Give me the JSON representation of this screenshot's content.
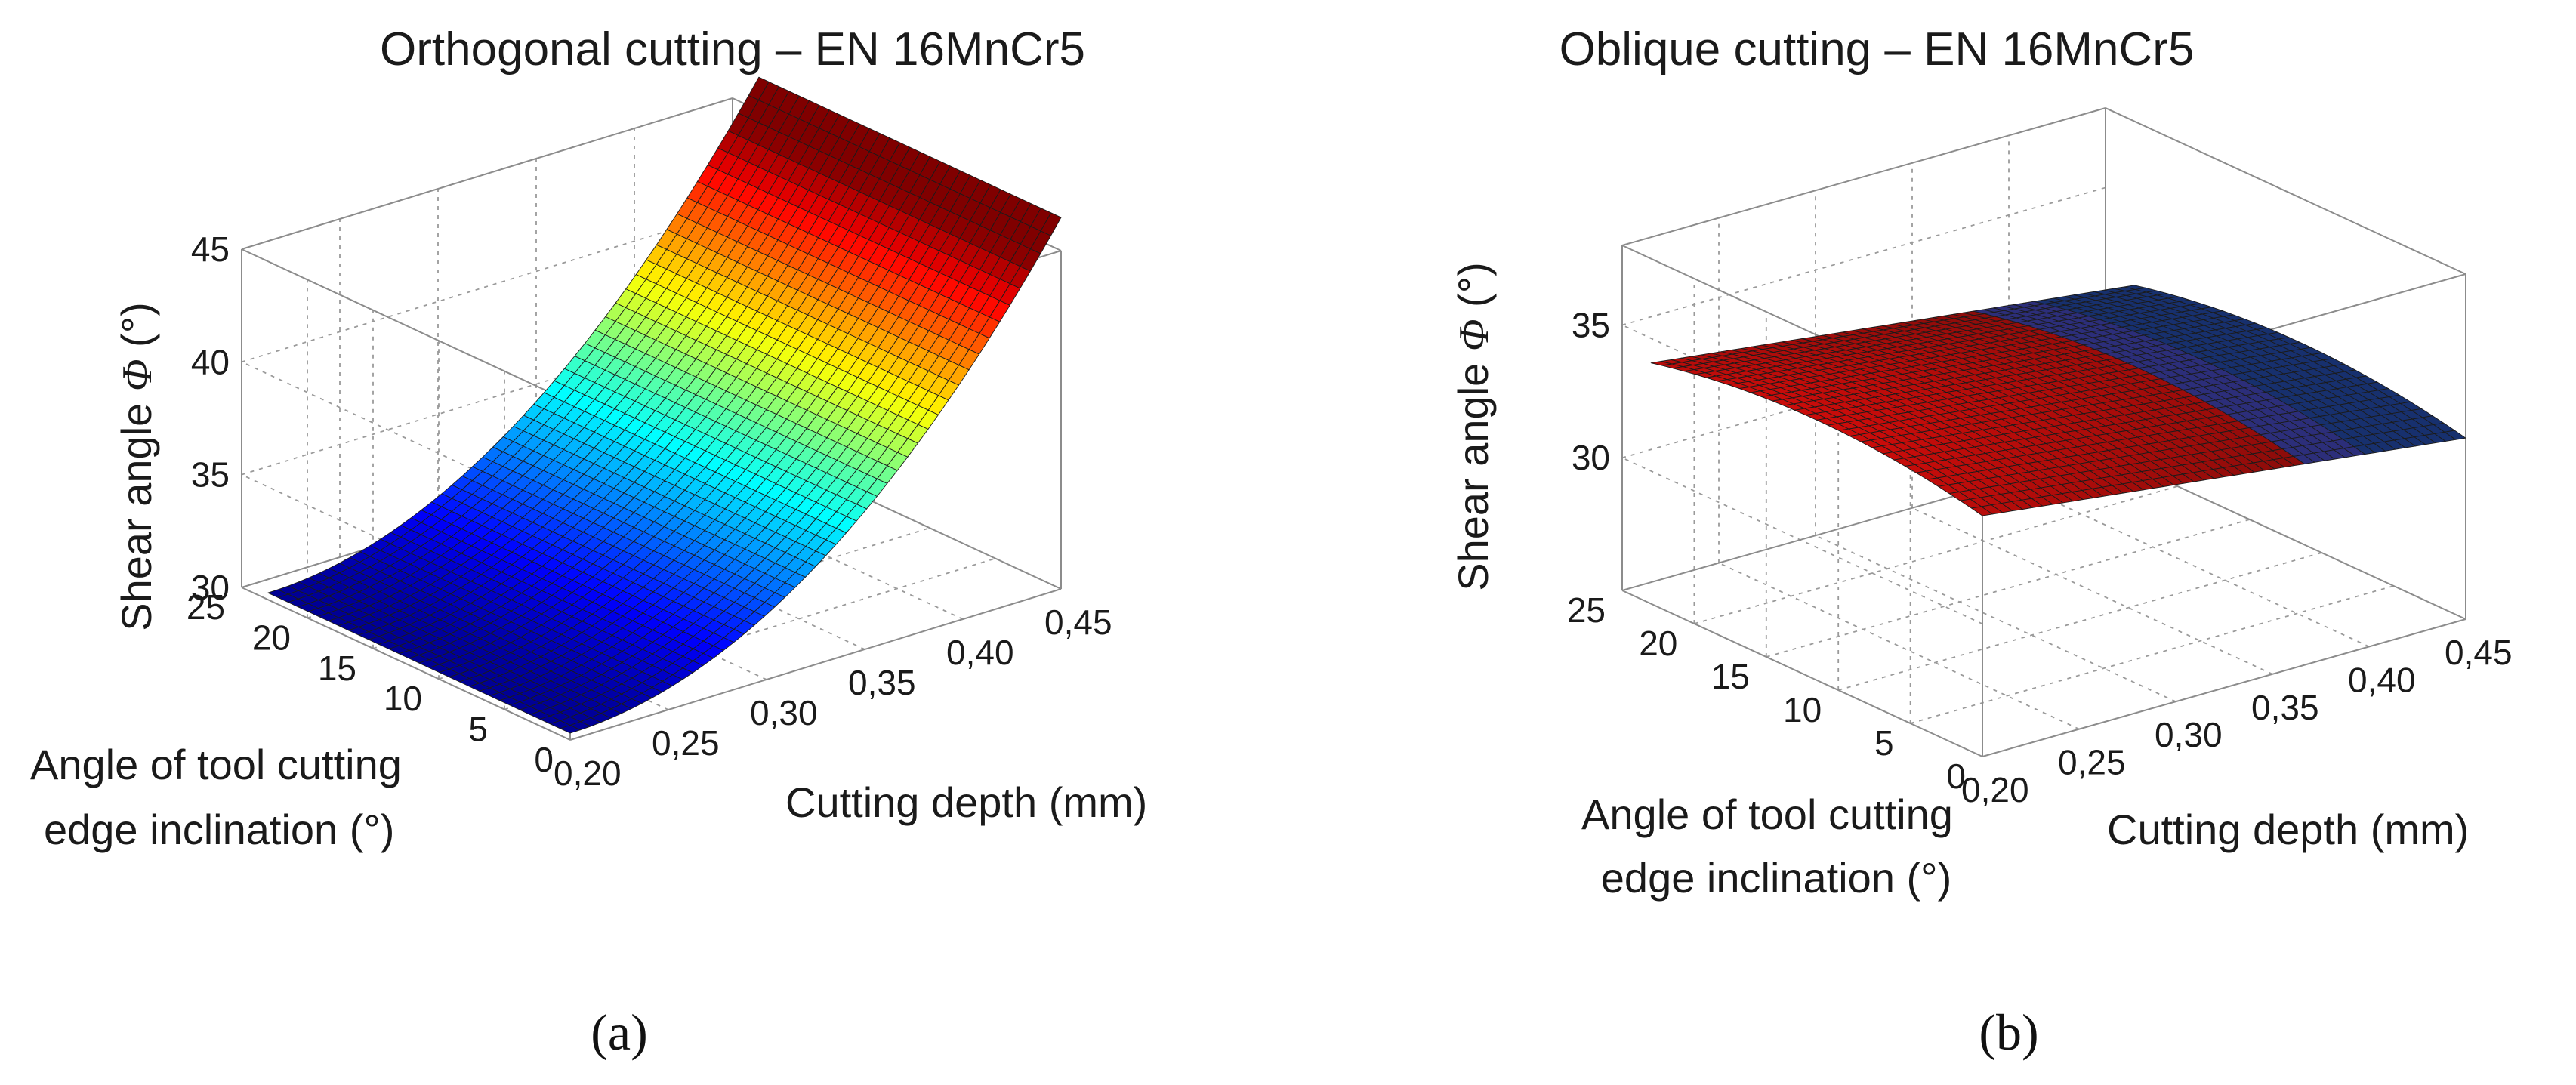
{
  "figure": {
    "panel_a_label": "(a)",
    "panel_b_label": "(b)"
  },
  "chart_data": [
    {
      "type": "surface",
      "title": "Orthogonal cutting – EN 16MnCr5",
      "xlabel": "Cutting depth (mm)",
      "ylabel_line1": "Angle of tool cutting",
      "ylabel_line2": "edge inclination (°)",
      "zlabel_main": "Shear angle ",
      "zlabel_symbol": "Φ",
      "zlabel_unit": " (°)",
      "x_ticks": [
        "0,20",
        "0,25",
        "0,30",
        "0,35",
        "0,40",
        "0,45"
      ],
      "y_ticks": [
        "0",
        "5",
        "10",
        "15",
        "20",
        "25"
      ],
      "z_ticks": [
        "30",
        "35",
        "40",
        "45"
      ],
      "xlim": [
        0.2,
        0.45
      ],
      "ylim": [
        0,
        25
      ],
      "zlim": [
        30,
        45
      ],
      "x_range_data": [
        0.2,
        0.45
      ],
      "y_range_data": [
        0,
        23
      ],
      "model": "z = 30.3 + 10.35 * ((x - 0.2) / 0.2)^2, independent of y",
      "sample_z_vs_x": {
        "x": [
          0.2,
          0.25,
          0.3,
          0.35,
          0.4,
          0.45
        ],
        "z": [
          30.3,
          30.9,
          32.9,
          36.1,
          40.7,
          46.5
        ]
      },
      "grid": true
    },
    {
      "type": "surface",
      "title": "Oblique cutting – EN 16MnCr5",
      "xlabel": "Cutting depth (mm)",
      "ylabel_line1": "Angle of tool cutting",
      "ylabel_line2": "edge inclination (°)",
      "zlabel_main": "Shear angle ",
      "zlabel_symbol": "Φ",
      "zlabel_unit": " (°)",
      "x_ticks": [
        "0,20",
        "0,25",
        "0,30",
        "0,35",
        "0,40",
        "0,45"
      ],
      "y_ticks": [
        "0",
        "5",
        "10",
        "15",
        "20",
        "25"
      ],
      "z_ticks": [
        "30",
        "35"
      ],
      "xlim": [
        0.2,
        0.45
      ],
      "ylim": [
        0,
        25
      ],
      "zlim": [
        25,
        38
      ],
      "x_range_data": [
        0.2,
        0.45
      ],
      "y_range_data": [
        0,
        23
      ],
      "model": "z = 34.8 - 0.0055 * (y - 11.5)^2 - 9 * (x - 0.2)",
      "sample_z_vs_x_at_y_11_5": {
        "x": [
          0.2,
          0.25,
          0.3,
          0.35,
          0.4,
          0.45
        ],
        "z": [
          34.8,
          34.35,
          33.9,
          33.45,
          33.0,
          32.55
        ]
      },
      "grid": true
    }
  ]
}
